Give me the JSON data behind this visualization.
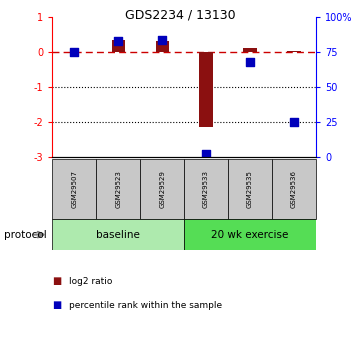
{
  "title": "GDS2234 / 13130",
  "samples": [
    "GSM29507",
    "GSM29523",
    "GSM29529",
    "GSM29533",
    "GSM29535",
    "GSM29536"
  ],
  "log2_ratios": [
    0.0,
    0.35,
    0.32,
    -2.15,
    0.12,
    0.02
  ],
  "percentile_ranks": [
    75,
    83,
    84,
    2,
    68,
    25
  ],
  "ylim_left": [
    -3,
    1
  ],
  "ylim_right": [
    0,
    100
  ],
  "yticks_left": [
    -3,
    -2,
    -1,
    0,
    1
  ],
  "yticks_right": [
    0,
    25,
    50,
    75,
    100
  ],
  "yticklabels_right": [
    "0",
    "25",
    "50",
    "75",
    "100%"
  ],
  "baseline_label": "baseline",
  "exercise_label": "20 wk exercise",
  "protocol_label": "protocol",
  "legend_log2": "log2 ratio",
  "legend_pct": "percentile rank within the sample",
  "bar_color": "#8B1010",
  "dot_color": "#0000BB",
  "dashed_line_color": "#CC0000",
  "baseline_box_color": "#AEEAAE",
  "exercise_box_color": "#55DD55",
  "sample_box_color": "#C8C8C8",
  "bar_width": 0.3,
  "dot_size": 40
}
